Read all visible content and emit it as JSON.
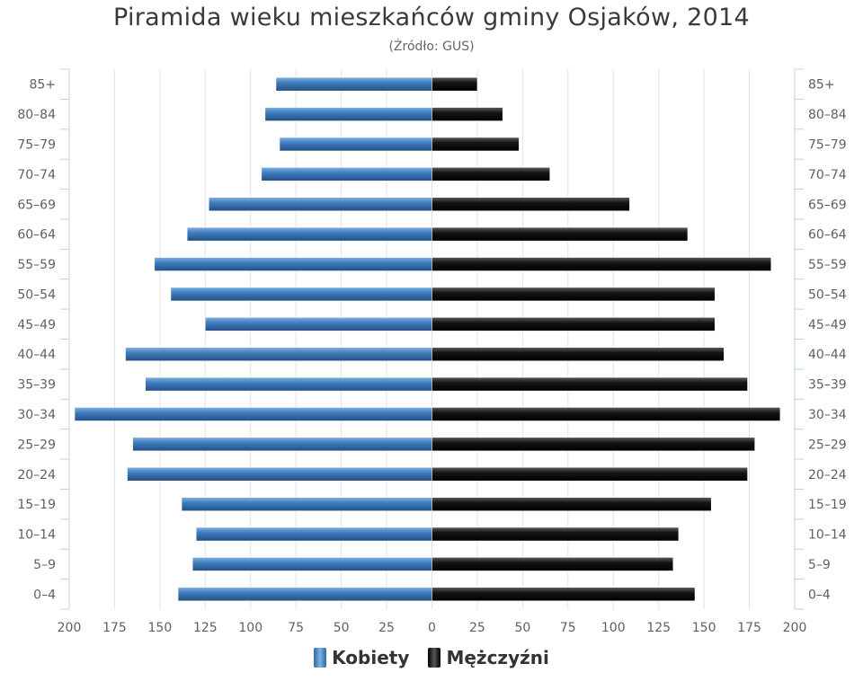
{
  "chart_data": {
    "type": "bar",
    "orientation": "horizontal",
    "layout": "population-pyramid",
    "title": "Piramida wieku mieszkańców gminy Osjaków, 2014",
    "subtitle": "(Źródło: GUS)",
    "categories": [
      "0–4",
      "5–9",
      "10–14",
      "15–19",
      "20–24",
      "25–29",
      "30–34",
      "35–39",
      "40–44",
      "45–49",
      "50–54",
      "55–59",
      "60–64",
      "65–69",
      "70–74",
      "75–79",
      "80–84",
      "85+"
    ],
    "series": [
      {
        "name": "Kobiety",
        "color": "#3f7dbd",
        "values": [
          140,
          132,
          130,
          138,
          168,
          165,
          197,
          158,
          169,
          125,
          144,
          153,
          135,
          123,
          94,
          84,
          92,
          86
        ]
      },
      {
        "name": "Mężczyźni",
        "color": "#141414",
        "values": [
          145,
          133,
          136,
          154,
          174,
          178,
          192,
          174,
          161,
          156,
          156,
          187,
          141,
          109,
          65,
          48,
          39,
          25
        ]
      }
    ],
    "xlim": [
      -200,
      200
    ],
    "xticks": [
      "200",
      "175",
      "150",
      "125",
      "100",
      "75",
      "50",
      "25",
      "0",
      "25",
      "50",
      "75",
      "100",
      "125",
      "150",
      "175",
      "200"
    ],
    "grid": true,
    "legend_position": "bottom-center"
  }
}
